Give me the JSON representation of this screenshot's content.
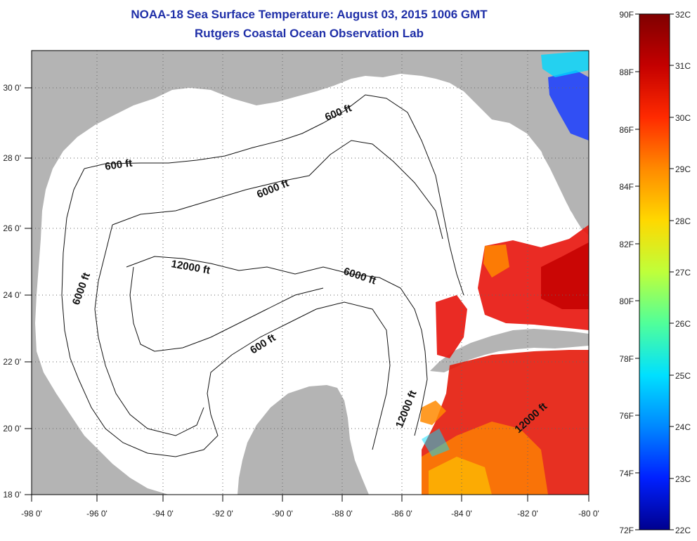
{
  "title": "NOAA-18 Sea Surface Temperature:  August 03, 2015 1006 GMT",
  "subtitle": "Rutgers Coastal Ocean Observation Lab",
  "x_ticks": [
    "-98 0'",
    "-96 0'",
    "-94 0'",
    "-92 0'",
    "-90 0'",
    "-88 0'",
    "-86 0'",
    "-84 0'",
    "-82 0'",
    "-80 0'"
  ],
  "y_ticks": [
    "18 0'",
    "20 0'",
    "22 0'",
    "24 0'",
    "26 0'",
    "28 0'",
    "30 0'"
  ],
  "contour_labels": [
    "600 ft",
    "600 ft",
    "600 ft",
    "6000 ft",
    "6000 ft",
    "6000 ft",
    "12000 ft",
    "12000 ft",
    "12000 ft"
  ],
  "colorbar": {
    "f_labels": [
      "90F",
      "88F",
      "86F",
      "84F",
      "82F",
      "80F",
      "78F",
      "76F",
      "74F",
      "72F"
    ],
    "c_labels": [
      "32C",
      "31C",
      "30C",
      "29C",
      "28C",
      "27C",
      "26C",
      "25C",
      "24C",
      "23C",
      "22C"
    ],
    "colors": [
      "#7f0000",
      "#d40000",
      "#ff3a00",
      "#ff8a00",
      "#ffd800",
      "#c8ff30",
      "#5cff8c",
      "#00e8ff",
      "#0090ff",
      "#0028ff",
      "#00008f"
    ]
  },
  "colors": {
    "land": "#b4b4b4",
    "water": "#ffffff",
    "title": "#1f2fa8"
  }
}
